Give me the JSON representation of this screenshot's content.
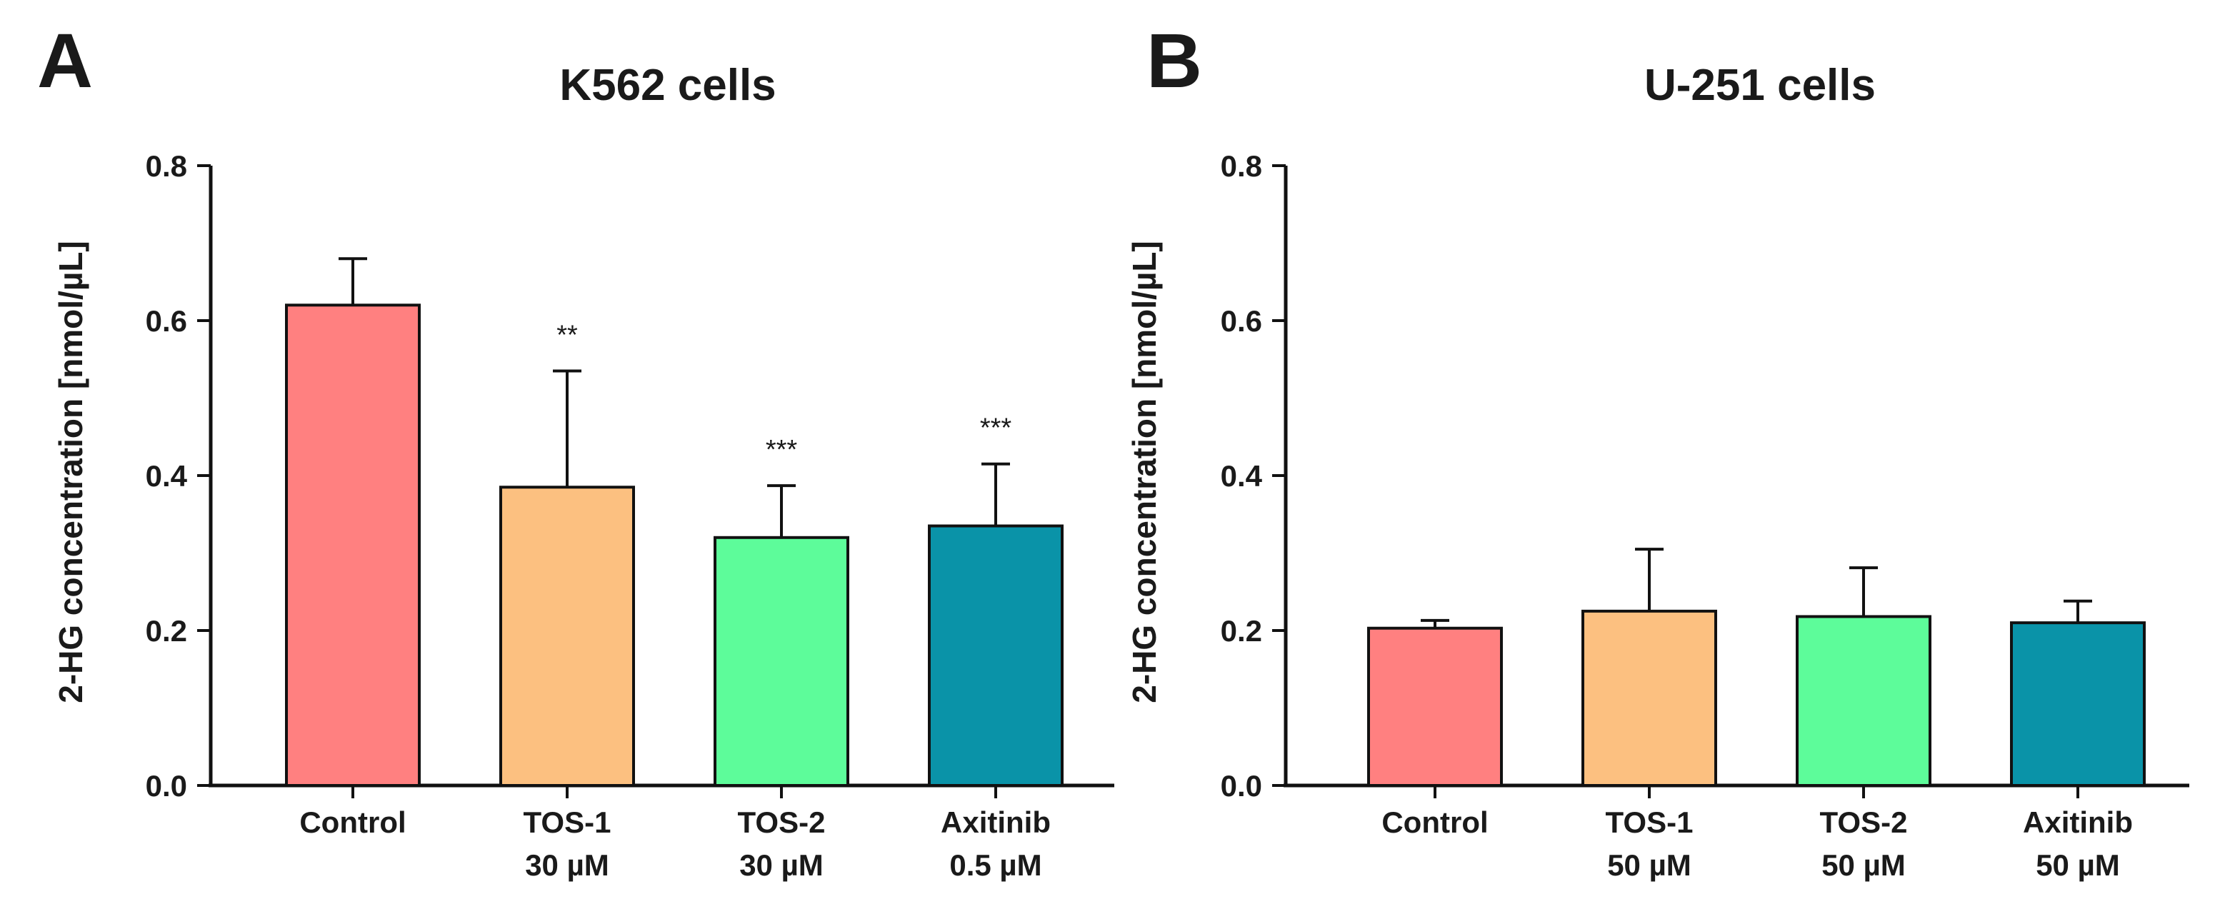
{
  "chart_data": [
    {
      "panel": "A",
      "type": "bar",
      "title": "K562 cells",
      "ylabel": "2-HG concentration [nmol/µL]",
      "xlabel": "",
      "ylim": [
        0,
        0.8
      ],
      "yticks": [
        "0.0",
        "0.2",
        "0.4",
        "0.6",
        "0.8"
      ],
      "categories": [
        {
          "line1": "Control",
          "line2": ""
        },
        {
          "line1": "TOS-1",
          "line2": "30 µM"
        },
        {
          "line1": "TOS-2",
          "line2": "30 µM"
        },
        {
          "line1": "Axitinib",
          "line2": "0.5 µM"
        }
      ],
      "values": [
        0.62,
        0.385,
        0.32,
        0.335
      ],
      "errors": [
        0.06,
        0.15,
        0.067,
        0.08
      ],
      "significance": [
        "",
        "**",
        "***",
        "***"
      ],
      "colors": [
        "#ff8080",
        "#fcc080",
        "#5dfc9a",
        "#0a93a8"
      ]
    },
    {
      "panel": "B",
      "type": "bar",
      "title": "U-251 cells",
      "ylabel": "2-HG concentration [nmol/µL]",
      "xlabel": "",
      "ylim": [
        0,
        0.8
      ],
      "yticks": [
        "0.0",
        "0.2",
        "0.4",
        "0.6",
        "0.8"
      ],
      "categories": [
        {
          "line1": "Control",
          "line2": ""
        },
        {
          "line1": "TOS-1",
          "line2": "50 µM"
        },
        {
          "line1": "TOS-2",
          "line2": "50 µM"
        },
        {
          "line1": "Axitinib",
          "line2": "50 µM"
        }
      ],
      "values": [
        0.203,
        0.225,
        0.218,
        0.21
      ],
      "errors": [
        0.01,
        0.08,
        0.063,
        0.028
      ],
      "significance": [
        "",
        "",
        "",
        ""
      ],
      "colors": [
        "#ff8080",
        "#fcc080",
        "#5dfc9a",
        "#0a93a8"
      ]
    }
  ]
}
